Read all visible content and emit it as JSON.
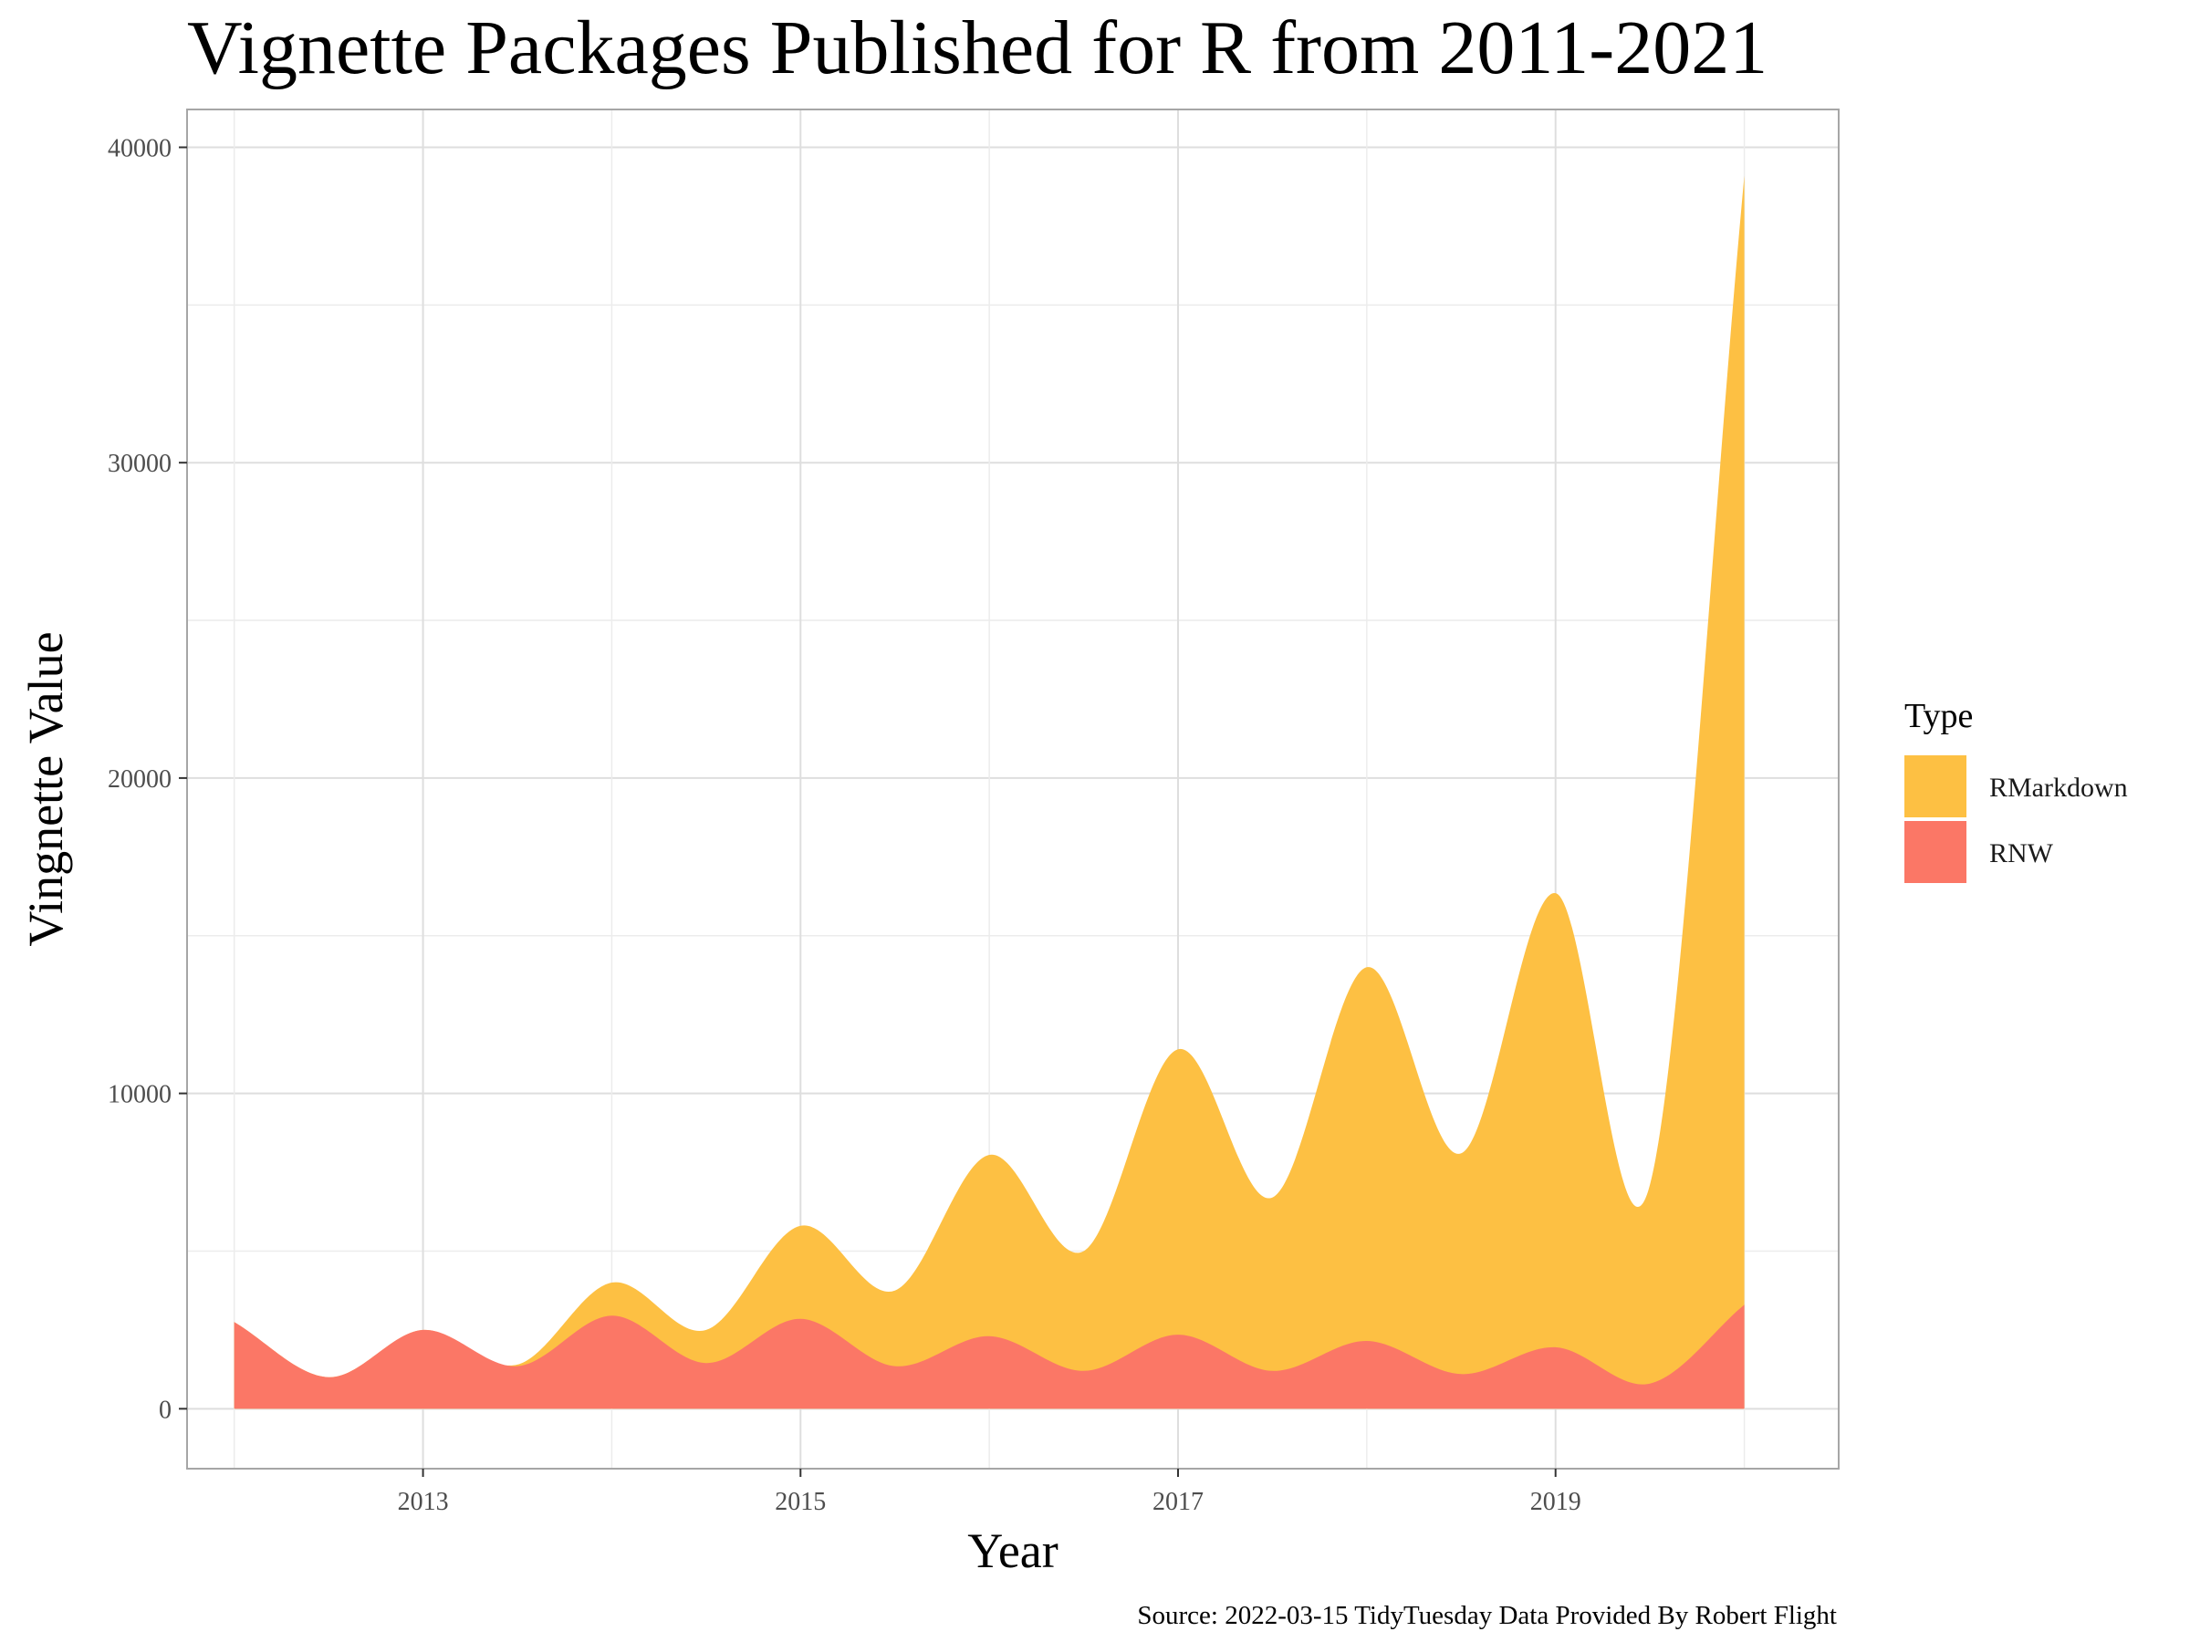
{
  "chart_data": {
    "type": "area",
    "stacked": true,
    "smoothed": true,
    "title": "Vignette Packages Published for R from 2011-2021",
    "xlabel": "Year",
    "ylabel": "Vingnette Value",
    "caption": "Source: 2022-03-15 TidyTuesday Data Provided By Robert Flight",
    "xlim": [
      2011.75,
      2020.5
    ],
    "ylim": [
      -1900,
      41200
    ],
    "x_ticks": [
      2013,
      2015,
      2017,
      2019
    ],
    "y_ticks": [
      0,
      10000,
      20000,
      30000,
      40000
    ],
    "grid": true,
    "legend": {
      "title": "Type",
      "position": "right"
    },
    "x": [
      2012,
      2012.5,
      2013,
      2013.5,
      2014,
      2014.5,
      2015,
      2015.5,
      2016,
      2016.5,
      2017,
      2017.5,
      2018,
      2018.5,
      2019,
      2019.5,
      2020
    ],
    "series": [
      {
        "name": "RNW",
        "color": "#fb7766",
        "values": [
          2750,
          1000,
          2500,
          1350,
          2950,
          1450,
          2850,
          1350,
          2300,
          1200,
          2350,
          1200,
          2150,
          1100,
          1950,
          800,
          3300
        ]
      },
      {
        "name": "RMarkdown",
        "color": "#fdc043",
        "values": [
          0,
          0,
          0,
          50,
          1050,
          1050,
          2950,
          2400,
          5750,
          3800,
          9050,
          5500,
          11850,
          7000,
          14400,
          6300,
          35800
        ]
      }
    ]
  }
}
